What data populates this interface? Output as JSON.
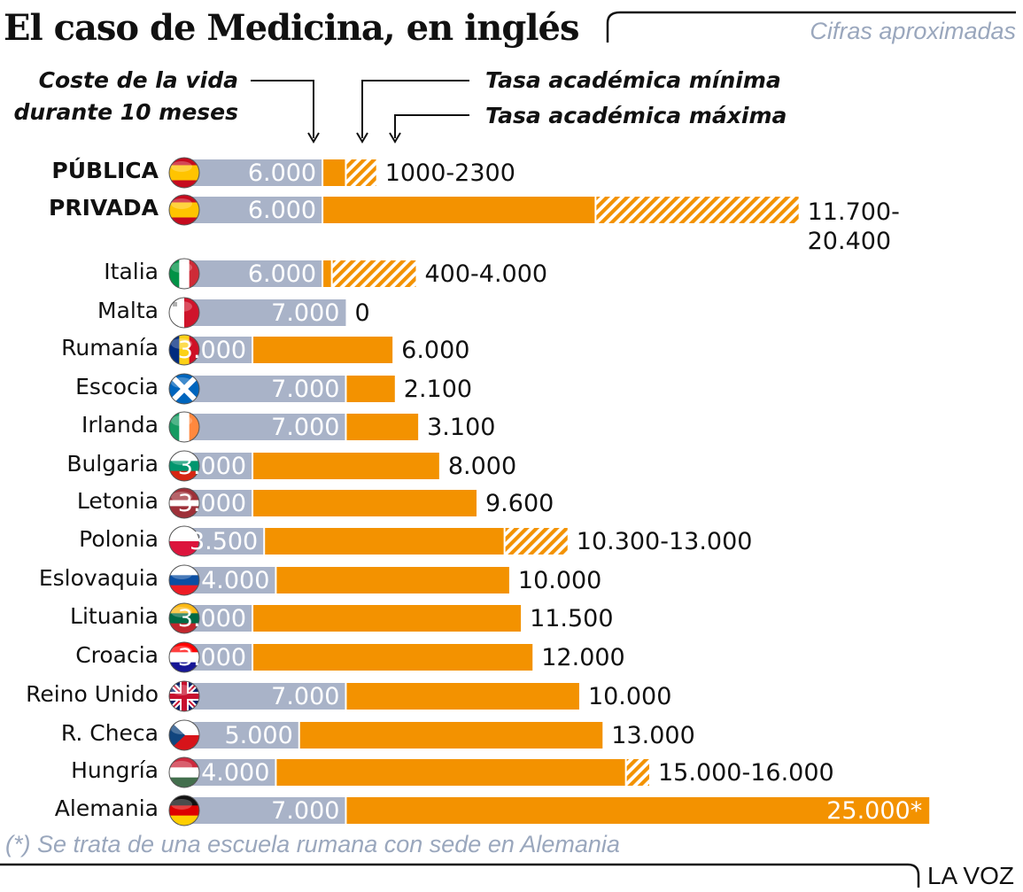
{
  "header": {
    "title": "El caso de Medicina, en inglés",
    "subtitle": "Cifras aproximadas"
  },
  "footer": {
    "note": "(*) Se trata de una escuela rumana con sede en Alemania",
    "brand": "LA VOZ"
  },
  "colors": {
    "cost": "#a9b3c8",
    "fee": "#f39200",
    "separator": "#ffffff"
  },
  "chart_data": {
    "type": "bar",
    "stacked": true,
    "orientation": "horizontal",
    "series": [
      {
        "name": "Coste de la vida durante 10 meses",
        "key": "cost"
      },
      {
        "name": "Tasa académica mínima",
        "key": "fee_min"
      },
      {
        "name": "Tasa académica máxima",
        "key": "fee_max"
      }
    ],
    "legend": {
      "cost": "Coste de la vida\ndurante 10 meses",
      "fee_min": "Tasa académica mínima",
      "fee_max": "Tasa académica máxima"
    },
    "categories": [
      {
        "label": "PÚBLICA",
        "flag": "spain-flag-icon",
        "cost": 6000,
        "fee_min": 1000,
        "fee_max": 2300,
        "cost_label": "6.000",
        "fee_label": "1000-2300",
        "emphasis": true
      },
      {
        "label": "PRIVADA",
        "flag": "spain-flag-icon",
        "cost": 6000,
        "fee_min": 11700,
        "fee_max": 20400,
        "cost_label": "6.000",
        "fee_label": "11.700-\n20.400",
        "emphasis": true
      },
      {
        "label": "Italia",
        "flag": "italy-flag-icon",
        "cost": 6000,
        "fee_min": 400,
        "fee_max": 4000,
        "cost_label": "6.000",
        "fee_label": "400-4.000"
      },
      {
        "label": "Malta",
        "flag": "malta-flag-icon",
        "cost": 7000,
        "fee_min": 0,
        "fee_max": 0,
        "cost_label": "7.000",
        "fee_label": "0"
      },
      {
        "label": "Rumanía",
        "flag": "romania-flag-icon",
        "cost": 3000,
        "fee_min": 6000,
        "fee_max": 6000,
        "cost_label": "3.000",
        "fee_label": "6.000"
      },
      {
        "label": "Escocia",
        "flag": "scotland-flag-icon",
        "cost": 7000,
        "fee_min": 2100,
        "fee_max": 2100,
        "cost_label": "7.000",
        "fee_label": "2.100"
      },
      {
        "label": "Irlanda",
        "flag": "ireland-flag-icon",
        "cost": 7000,
        "fee_min": 3100,
        "fee_max": 3100,
        "cost_label": "7.000",
        "fee_label": "3.100"
      },
      {
        "label": "Bulgaria",
        "flag": "bulgaria-flag-icon",
        "cost": 3000,
        "fee_min": 8000,
        "fee_max": 8000,
        "cost_label": "3.000",
        "fee_label": "8.000"
      },
      {
        "label": "Letonia",
        "flag": "latvia-flag-icon",
        "cost": 3000,
        "fee_min": 9600,
        "fee_max": 9600,
        "cost_label": "3.000",
        "fee_label": "9.600"
      },
      {
        "label": "Polonia",
        "flag": "poland-flag-icon",
        "cost": 3500,
        "fee_min": 10300,
        "fee_max": 13000,
        "cost_label": "3.500",
        "fee_label": "10.300-13.000"
      },
      {
        "label": "Eslovaquia",
        "flag": "slovakia-flag-icon",
        "cost": 4000,
        "fee_min": 10000,
        "fee_max": 10000,
        "cost_label": "4.000",
        "fee_label": "10.000"
      },
      {
        "label": "Lituania",
        "flag": "lithuania-flag-icon",
        "cost": 3000,
        "fee_min": 11500,
        "fee_max": 11500,
        "cost_label": "3.000",
        "fee_label": "11.500"
      },
      {
        "label": "Croacia",
        "flag": "croatia-flag-icon",
        "cost": 3000,
        "fee_min": 12000,
        "fee_max": 12000,
        "cost_label": "3.000",
        "fee_label": "12.000"
      },
      {
        "label": "Reino Unido",
        "flag": "uk-flag-icon",
        "cost": 7000,
        "fee_min": 10000,
        "fee_max": 10000,
        "cost_label": "7.000",
        "fee_label": "10.000"
      },
      {
        "label": "R. Checa",
        "flag": "czech-flag-icon",
        "cost": 5000,
        "fee_min": 13000,
        "fee_max": 13000,
        "cost_label": "5.000",
        "fee_label": "13.000"
      },
      {
        "label": "Hungría",
        "flag": "hungary-flag-icon",
        "cost": 4000,
        "fee_min": 15000,
        "fee_max": 16000,
        "cost_label": "4.000",
        "fee_label": "15.000-16.000"
      },
      {
        "label": "Alemania",
        "flag": "germany-flag-icon",
        "cost": 7000,
        "fee_min": 25000,
        "fee_max": 25000,
        "cost_label": "7.000",
        "fee_label": "25.000*",
        "label_inside": true
      }
    ]
  }
}
